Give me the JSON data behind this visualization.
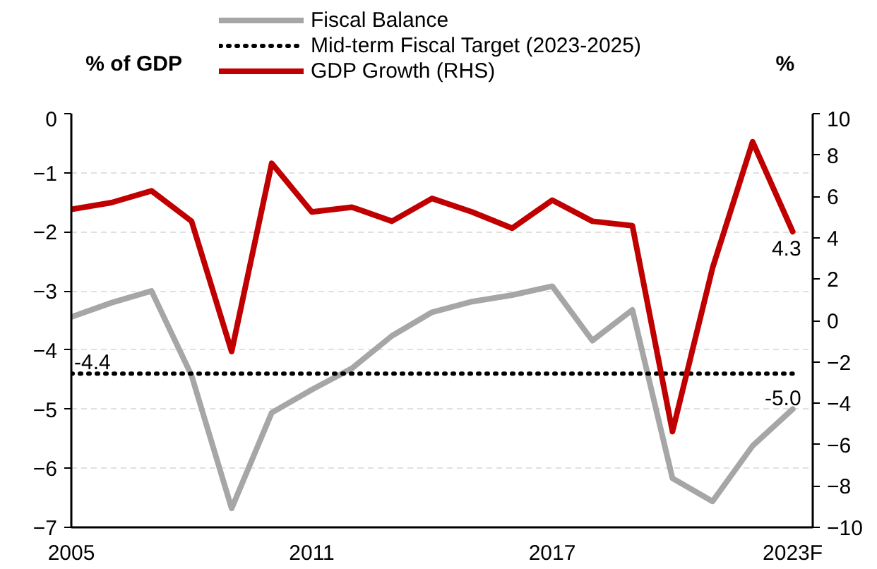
{
  "chart_data": {
    "type": "line",
    "ylabel": "% of GDP",
    "y2label": "%",
    "x": [
      2005,
      2006,
      2007,
      2008,
      2009,
      2010,
      2011,
      2012,
      2013,
      2014,
      2015,
      2016,
      2017,
      2018,
      2019,
      2020,
      2021,
      2022,
      2023
    ],
    "xlim": [
      2005,
      2023.5
    ],
    "xticks": [
      2005,
      2011,
      2017,
      {
        "value": 2023,
        "label": "2023F"
      }
    ],
    "ylim": [
      -7,
      0
    ],
    "yticks": [
      -7,
      -6,
      -5,
      -4,
      -3,
      -2,
      -1,
      0
    ],
    "y2lim": [
      -10,
      10
    ],
    "y2ticks": [
      -10,
      -8,
      -6,
      -4,
      -2,
      0,
      2,
      4,
      6,
      8,
      10
    ],
    "grid": "y",
    "legend": "top",
    "series": [
      {
        "name": "Fiscal Balance",
        "color": "#a6a6a6",
        "line_style": "solid",
        "values": [
          -3.44,
          -3.2,
          -3.0,
          -4.43,
          -6.68,
          -5.06,
          -4.67,
          -4.31,
          -3.76,
          -3.36,
          -3.18,
          -3.07,
          -2.92,
          -3.84,
          -3.32,
          -6.17,
          -6.56,
          -5.62,
          -5.0
        ],
        "value_labels": [
          null,
          null,
          null,
          null,
          null,
          null,
          null,
          null,
          null,
          null,
          null,
          null,
          null,
          null,
          null,
          null,
          null,
          null,
          "-5.0"
        ]
      },
      {
        "name": "Mid-term Fiscal Target (2023-2025)",
        "color": "#000000",
        "line_style": "dotted",
        "values": [
          -4.4,
          -4.4,
          -4.4,
          -4.4,
          -4.4,
          -4.4,
          -4.4,
          -4.4,
          -4.4,
          -4.4,
          -4.4,
          -4.4,
          -4.4,
          -4.4,
          -4.4,
          -4.4,
          -4.4,
          -4.4,
          -4.4
        ],
        "value_labels": [
          "-4.4",
          null,
          null,
          null,
          null,
          null,
          null,
          null,
          null,
          null,
          null,
          null,
          null,
          null,
          null,
          null,
          null,
          null,
          null
        ]
      },
      {
        "name": "GDP Growth (RHS)",
        "color": "#c00000",
        "line_style": "solid",
        "axis": "y2",
        "values": [
          5.37,
          5.7,
          6.27,
          4.8,
          -1.5,
          7.6,
          5.25,
          5.48,
          4.8,
          5.9,
          5.25,
          4.46,
          5.82,
          4.8,
          4.58,
          -5.37,
          2.54,
          8.64,
          4.3
        ],
        "value_labels": [
          null,
          null,
          null,
          null,
          null,
          null,
          null,
          null,
          null,
          null,
          null,
          null,
          null,
          null,
          null,
          null,
          null,
          null,
          "4.3"
        ]
      }
    ]
  }
}
